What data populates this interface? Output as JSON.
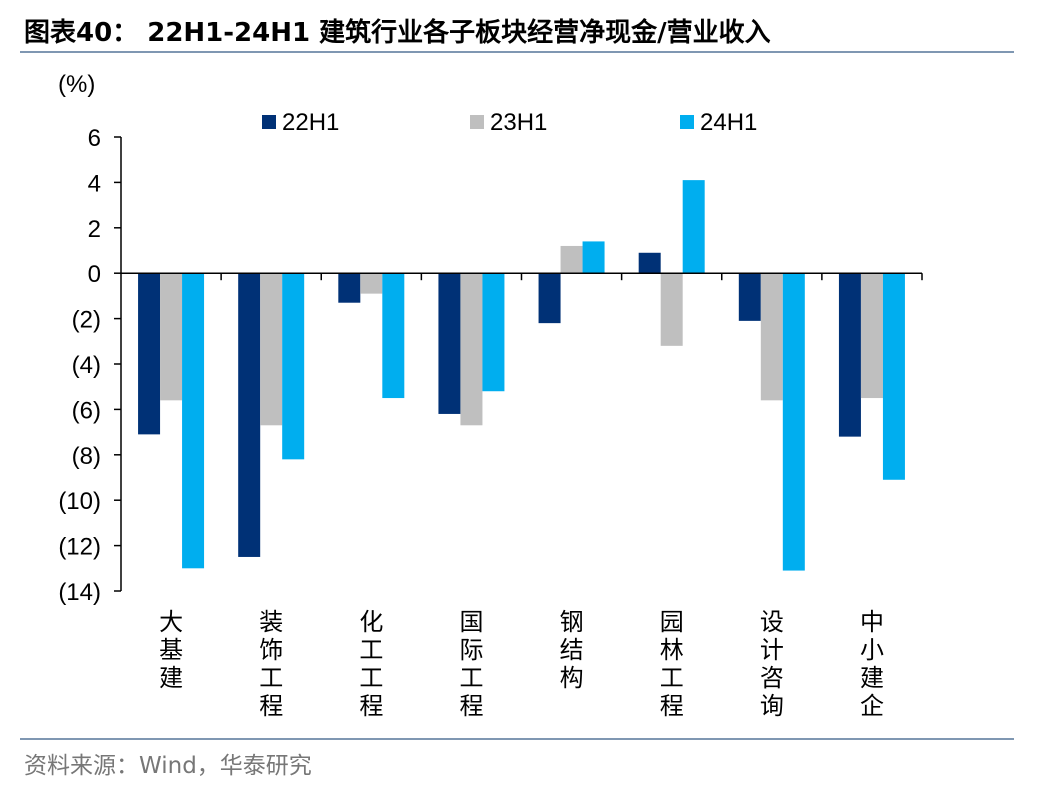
{
  "header": {
    "title": "图表40： 22H1-24H1 建筑行业各子板块经营净现金/营业收入"
  },
  "footer": {
    "source": "资料来源：Wind，华泰研究"
  },
  "chart_data": {
    "type": "bar",
    "ylabel": "(%)",
    "ylim": [
      -14,
      6
    ],
    "yticks": [
      6,
      4,
      2,
      0,
      -2,
      -4,
      -6,
      -8,
      -10,
      -12,
      -14
    ],
    "ytick_labels": [
      "6",
      "4",
      "2",
      "0",
      "(2)",
      "(4)",
      "(6)",
      "(8)",
      "(10)",
      "(12)",
      "(14)"
    ],
    "categories": [
      "大基建",
      "装饰工程",
      "化工工程",
      "国际工程",
      "钢结构",
      "园林工程",
      "设计咨询",
      "中小建企"
    ],
    "series": [
      {
        "name": "22H1",
        "color": "#003176",
        "values": [
          -7.1,
          -12.5,
          -1.3,
          -6.2,
          -2.2,
          0.9,
          -2.1,
          -7.2
        ]
      },
      {
        "name": "23H1",
        "color": "#bfbfbf",
        "values": [
          -5.6,
          -6.7,
          -0.9,
          -6.7,
          1.2,
          -3.2,
          -5.6,
          -5.5
        ]
      },
      {
        "name": "24H1",
        "color": "#00aeef",
        "values": [
          -13.0,
          -8.2,
          -5.5,
          -5.2,
          1.4,
          4.1,
          -13.1,
          -9.1
        ]
      }
    ],
    "legend_position": "top",
    "grid": false
  }
}
